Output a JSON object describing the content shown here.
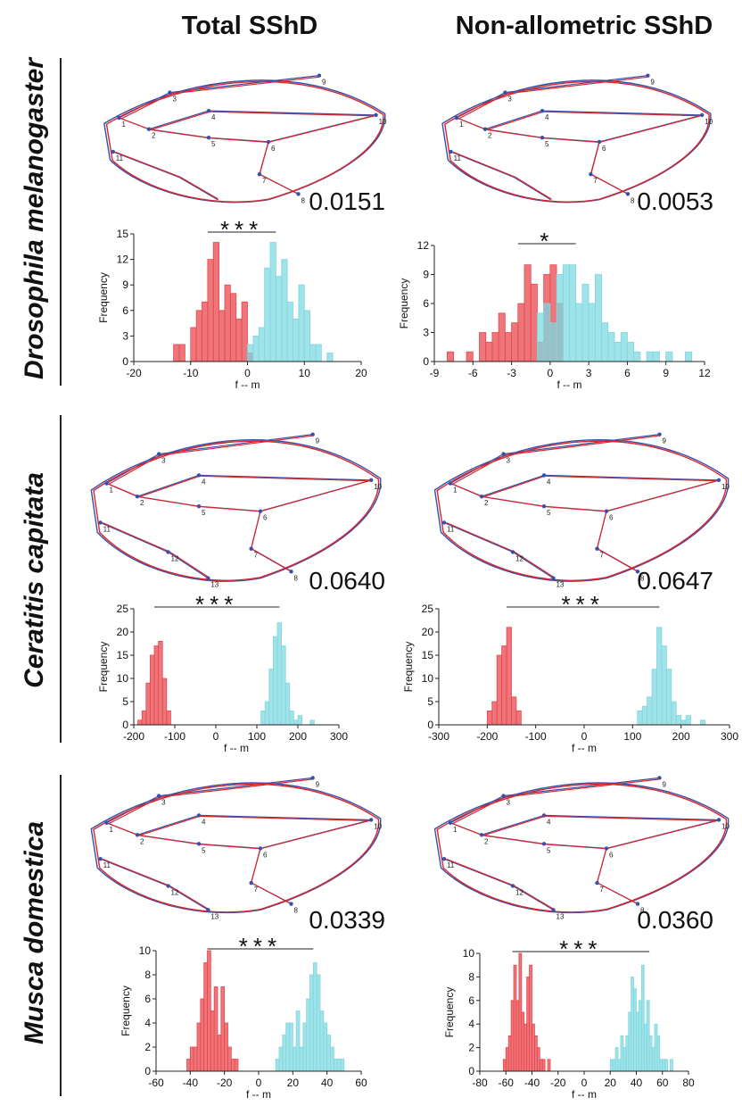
{
  "columns": [
    "Total SShD",
    "Non-allometric SShD"
  ],
  "rows": [
    "Drosophila melanogaster",
    "Ceratitis capitata",
    "Musca domestica"
  ],
  "panels": [
    {
      "landmarks": [
        "1",
        "2",
        "3",
        "4",
        "5",
        "6",
        "7",
        "8",
        "9",
        "10",
        "11"
      ],
      "distance": "0.0151"
    },
    {
      "landmarks": [
        "1",
        "2",
        "3",
        "4",
        "5",
        "6",
        "7",
        "8",
        "9",
        "10",
        "11"
      ],
      "distance": "0.0053"
    },
    {
      "landmarks": [
        "1",
        "2",
        "3",
        "4",
        "5",
        "6",
        "7",
        "8",
        "9",
        "10",
        "11",
        "12",
        "13"
      ],
      "distance": "0.0640"
    },
    {
      "landmarks": [
        "1",
        "2",
        "3",
        "4",
        "5",
        "6",
        "7",
        "8",
        "9",
        "10",
        "11",
        "12",
        "13"
      ],
      "distance": "0.0647"
    },
    {
      "landmarks": [
        "1",
        "2",
        "3",
        "4",
        "5",
        "6",
        "7",
        "8",
        "9",
        "10",
        "11",
        "12",
        "13"
      ],
      "distance": "0.0339"
    },
    {
      "landmarks": [
        "1",
        "2",
        "3",
        "4",
        "5",
        "6",
        "7",
        "8",
        "9",
        "10",
        "11",
        "12",
        "13"
      ],
      "distance": "0.0360"
    }
  ],
  "chart_data": [
    {
      "type": "histogram",
      "x_label": "f -- m",
      "y_label": "Frequency",
      "xlim": [
        -20,
        20
      ],
      "xticks": [
        -20,
        -10,
        0,
        10,
        20
      ],
      "ylim": [
        0,
        15
      ],
      "yticks": [
        0,
        3,
        6,
        9,
        12,
        15
      ],
      "significance": {
        "label": "***",
        "x": [
          -7,
          5
        ]
      },
      "series": [
        {
          "color": "#e8474c",
          "bins": [
            -13,
            -12,
            -11,
            -10,
            -9,
            -8,
            -7,
            -6,
            -5,
            -4,
            -3,
            -2,
            -1,
            0,
            1
          ],
          "values": [
            2,
            2,
            0,
            4,
            6,
            7,
            12,
            14,
            6,
            9,
            8,
            5,
            7,
            1
          ]
        },
        {
          "color": "#7fd8e0",
          "bins": [
            0,
            1,
            2,
            3,
            4,
            5,
            6,
            7,
            8,
            9,
            10,
            11,
            12,
            13,
            14,
            15
          ],
          "values": [
            2,
            3,
            4,
            11,
            14,
            10,
            12,
            7,
            5,
            9,
            6,
            2,
            2,
            0,
            1
          ]
        }
      ]
    },
    {
      "type": "histogram",
      "x_label": "f -- m",
      "y_label": "Frequency",
      "xlim": [
        -9,
        12
      ],
      "xticks": [
        -9,
        -6,
        -3,
        0,
        3,
        6,
        9,
        12
      ],
      "ylim": [
        0,
        12
      ],
      "yticks": [
        0,
        3,
        6,
        9,
        12
      ],
      "significance": {
        "label": "*",
        "x": [
          -2.5,
          2
        ]
      },
      "series": [
        {
          "color": "#e8474c",
          "bins": [
            -8,
            -7.5,
            -7,
            -6.5,
            -6,
            -5.5,
            -5,
            -4.5,
            -4,
            -3.5,
            -3,
            -2.5,
            -2,
            -1.5,
            -1,
            -0.5,
            0,
            0.5,
            1
          ],
          "values": [
            1,
            0,
            0,
            1,
            0,
            3,
            2,
            3,
            5,
            3,
            4,
            6,
            10,
            8,
            2,
            9,
            10,
            6
          ]
        },
        {
          "color": "#7fd8e0",
          "bins": [
            -1,
            -0.5,
            0,
            0.5,
            1,
            1.5,
            2,
            2.5,
            3,
            3.5,
            4,
            4.5,
            5,
            5.5,
            6,
            6.5,
            7,
            7.5,
            8,
            8.5,
            9,
            9.5,
            10,
            10.5,
            11
          ],
          "values": [
            5,
            6,
            4,
            9,
            10,
            10,
            6,
            8,
            6,
            9,
            4,
            3,
            2,
            3,
            2,
            1,
            0,
            1,
            1,
            0,
            1,
            0,
            0,
            1
          ]
        }
      ]
    },
    {
      "type": "histogram",
      "x_label": "f -- m",
      "y_label": "Frequency",
      "xlim": [
        -200,
        300
      ],
      "xticks": [
        -200,
        -100,
        0,
        100,
        200,
        300
      ],
      "ylim": [
        0,
        25
      ],
      "yticks": [
        0,
        5,
        10,
        15,
        20,
        25
      ],
      "significance": {
        "label": "***",
        "x": [
          -150,
          155
        ]
      },
      "series": [
        {
          "color": "#e8474c",
          "bins": [
            -190,
            -180,
            -170,
            -160,
            -150,
            -140,
            -130,
            -120,
            -110
          ],
          "values": [
            1,
            3,
            9,
            15,
            17,
            18,
            10,
            3
          ]
        },
        {
          "color": "#7fd8e0",
          "bins": [
            110,
            120,
            130,
            140,
            150,
            160,
            170,
            180,
            190,
            200,
            210,
            220,
            230,
            240
          ],
          "values": [
            3,
            5,
            12,
            19,
            22,
            17,
            9,
            3,
            1,
            2,
            0,
            0,
            1
          ]
        }
      ]
    },
    {
      "type": "histogram",
      "x_label": "f -- m",
      "y_label": "Frequency",
      "xlim": [
        -300,
        300
      ],
      "xticks": [
        -300,
        -200,
        -100,
        0,
        100,
        200,
        300
      ],
      "ylim": [
        0,
        25
      ],
      "yticks": [
        0,
        5,
        10,
        15,
        20,
        25
      ],
      "significance": {
        "label": "***",
        "x": [
          -160,
          155
        ]
      },
      "series": [
        {
          "color": "#e8474c",
          "bins": [
            -200,
            -190,
            -180,
            -170,
            -160,
            -150,
            -140,
            -130
          ],
          "values": [
            3,
            5,
            15,
            17,
            21,
            6,
            3
          ]
        },
        {
          "color": "#7fd8e0",
          "bins": [
            110,
            120,
            130,
            140,
            150,
            160,
            170,
            180,
            190,
            200,
            210,
            220,
            230,
            240,
            250
          ],
          "values": [
            3,
            4,
            6,
            12,
            21,
            17,
            12,
            5,
            2,
            1,
            2,
            0,
            0,
            1
          ]
        }
      ]
    },
    {
      "type": "histogram",
      "x_label": "f -- m",
      "y_label": "Frequency",
      "xlim": [
        -60,
        60
      ],
      "xticks": [
        -60,
        -40,
        -20,
        0,
        20,
        40,
        60
      ],
      "ylim": [
        0,
        10
      ],
      "yticks": [
        0,
        2,
        4,
        6,
        8,
        10
      ],
      "significance": {
        "label": "***",
        "x": [
          -30,
          32
        ]
      },
      "series": [
        {
          "color": "#e8474c",
          "bins": [
            -42,
            -40,
            -38,
            -36,
            -34,
            -32,
            -30,
            -28,
            -26,
            -24,
            -22,
            -20,
            -18,
            -16,
            -14,
            -12
          ],
          "values": [
            1,
            2,
            2,
            4,
            6,
            9,
            10,
            5,
            7,
            3,
            7,
            4,
            2,
            1,
            1
          ]
        },
        {
          "color": "#7fd8e0",
          "bins": [
            10,
            12,
            14,
            16,
            18,
            20,
            22,
            24,
            26,
            28,
            30,
            32,
            34,
            36,
            38,
            40,
            42,
            44,
            46,
            48,
            50
          ],
          "values": [
            1,
            2,
            3,
            4,
            4,
            2,
            5,
            2,
            4,
            6,
            8,
            9,
            8,
            5,
            4,
            3,
            2,
            1,
            1,
            1
          ]
        }
      ]
    },
    {
      "type": "histogram",
      "x_label": "f -- m",
      "y_label": "Frequency",
      "xlim": [
        -80,
        80
      ],
      "xticks": [
        -80,
        -60,
        -40,
        -20,
        0,
        20,
        40,
        60,
        80
      ],
      "ylim": [
        0,
        10
      ],
      "yticks": [
        0,
        2,
        4,
        6,
        8,
        10
      ],
      "significance": {
        "label": "***",
        "x": [
          -55,
          50
        ]
      },
      "series": [
        {
          "color": "#e8474c",
          "bins": [
            -62,
            -60,
            -58,
            -56,
            -54,
            -52,
            -50,
            -48,
            -46,
            -44,
            -42,
            -40,
            -38,
            -36,
            -34,
            -32,
            -30,
            -28,
            -26
          ],
          "values": [
            1,
            2,
            3,
            6,
            9,
            6,
            10,
            5,
            4,
            8,
            9,
            4,
            3,
            2,
            1,
            1,
            0,
            1
          ]
        },
        {
          "color": "#7fd8e0",
          "bins": [
            20,
            22,
            24,
            26,
            28,
            30,
            32,
            34,
            36,
            38,
            40,
            42,
            44,
            46,
            48,
            50,
            52,
            54,
            56,
            58,
            60,
            62,
            64,
            66,
            68
          ],
          "values": [
            1,
            1,
            2,
            1,
            3,
            2,
            3,
            5,
            8,
            7,
            5,
            6,
            9,
            4,
            6,
            3,
            2,
            4,
            3,
            1,
            1,
            1,
            0,
            1
          ]
        }
      ]
    }
  ]
}
